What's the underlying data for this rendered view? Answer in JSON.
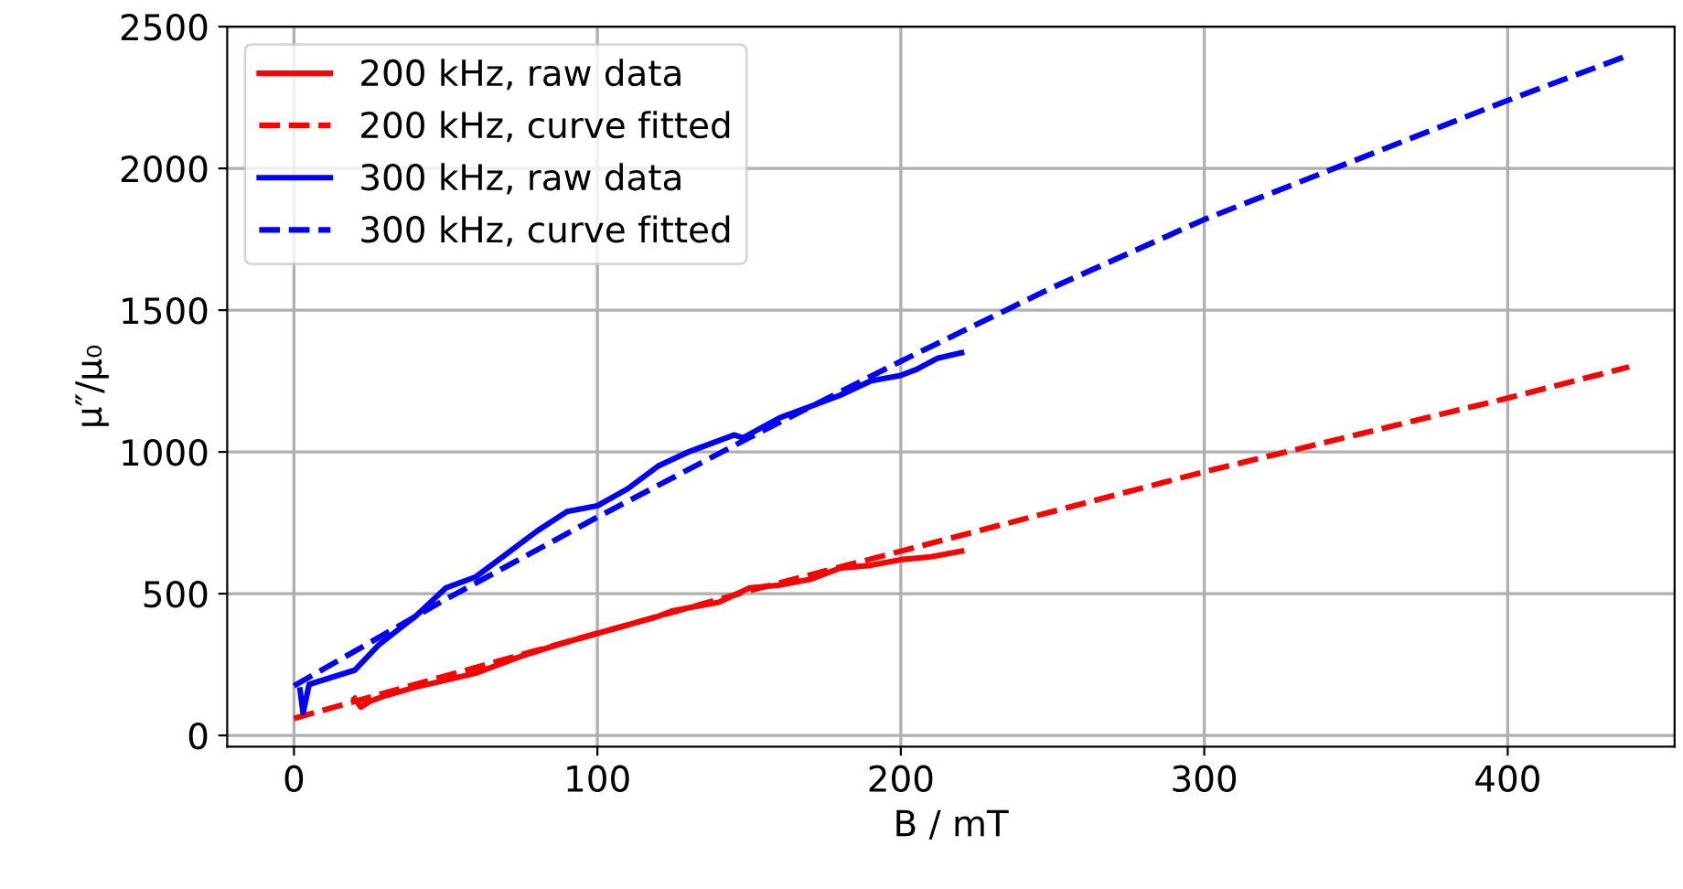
{
  "chart_data": {
    "type": "line",
    "xlabel": "B / mT",
    "ylabel": "μ″/μ₀",
    "xlim": [
      -22,
      455
    ],
    "ylim": [
      -40,
      2500
    ],
    "xticks": [
      0,
      100,
      200,
      300,
      400
    ],
    "yticks": [
      0,
      500,
      1000,
      1500,
      2000,
      2500
    ],
    "grid": true,
    "legend": "top left",
    "series": [
      {
        "name": "200 kHz, raw data",
        "color": "#ff0000",
        "line_style": "solid",
        "x": [
          20,
          22,
          25,
          30,
          40,
          60,
          75,
          90,
          100,
          110,
          120,
          125,
          140,
          150,
          160,
          170,
          180,
          190,
          200,
          210,
          220
        ],
        "values": [
          130,
          100,
          120,
          140,
          170,
          220,
          280,
          330,
          360,
          390,
          420,
          440,
          470,
          520,
          530,
          550,
          590,
          600,
          620,
          630,
          650
        ]
      },
      {
        "name": "200 kHz, curve fitted",
        "color": "#ff0000",
        "line_style": "dashed",
        "x": [
          0,
          50,
          100,
          150,
          200,
          250,
          300,
          350,
          400,
          440
        ],
        "values": [
          60,
          210,
          360,
          510,
          650,
          790,
          930,
          1060,
          1190,
          1300
        ]
      },
      {
        "name": "300 kHz, raw data",
        "color": "#0000ff",
        "line_style": "solid",
        "x": [
          2,
          3,
          5,
          20,
          28,
          40,
          50,
          60,
          70,
          80,
          90,
          100,
          110,
          120,
          130,
          145,
          148,
          160,
          170,
          180,
          190,
          200,
          205,
          212,
          220
        ],
        "values": [
          160,
          80,
          180,
          230,
          320,
          420,
          520,
          560,
          640,
          720,
          790,
          810,
          870,
          950,
          1000,
          1060,
          1050,
          1120,
          1160,
          1200,
          1250,
          1270,
          1290,
          1330,
          1350
        ]
      },
      {
        "name": "300 kHz, curve fitted",
        "color": "#0000ff",
        "line_style": "dashed",
        "x": [
          0,
          50,
          100,
          150,
          200,
          250,
          300,
          350,
          400,
          440
        ],
        "values": [
          175,
          480,
          770,
          1050,
          1320,
          1580,
          1820,
          2030,
          2240,
          2400
        ]
      }
    ]
  }
}
